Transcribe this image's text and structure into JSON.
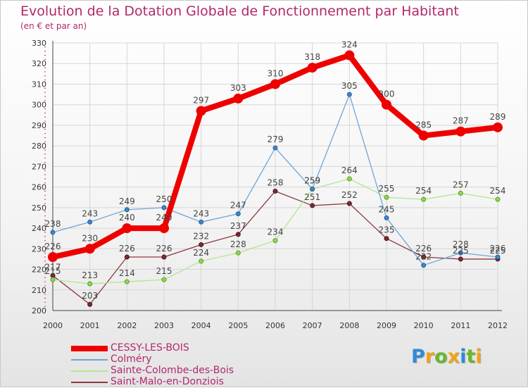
{
  "chart_data": {
    "type": "line",
    "title": "Evolution de la Dotation Globale de Fonctionnement par Habitant",
    "subtitle": "(en € et par an)",
    "xlabel": "",
    "ylabel": "",
    "x": [
      2000,
      2001,
      2002,
      2003,
      2004,
      2005,
      2006,
      2007,
      2008,
      2009,
      2010,
      2011,
      2012
    ],
    "ylim": [
      200,
      330
    ],
    "yticks": [
      200,
      210,
      220,
      230,
      240,
      250,
      260,
      270,
      280,
      290,
      300,
      310,
      320,
      330
    ],
    "grid": true,
    "legend_position": "bottom-left",
    "series": [
      {
        "name": "CESSY-LES-BOIS",
        "color": "#ee0000",
        "values": [
          226,
          230,
          240,
          240,
          297,
          303,
          310,
          318,
          324,
          300,
          285,
          287,
          289
        ]
      },
      {
        "name": "Colméry",
        "color": "#5b9bd5",
        "values": [
          238,
          243,
          249,
          250,
          243,
          247,
          279,
          259,
          305,
          245,
          222,
          228,
          226
        ]
      },
      {
        "name": "Sainte-Colombe-des-Bois",
        "color": "#a6e07a",
        "values": [
          215,
          213,
          214,
          215,
          224,
          228,
          234,
          259,
          264,
          255,
          254,
          257,
          254
        ]
      },
      {
        "name": "Saint-Malo-en-Donziois",
        "color": "#7b2b32",
        "values": [
          217,
          203,
          226,
          226,
          232,
          237,
          258,
          251,
          252,
          235,
          226,
          225,
          225
        ]
      }
    ]
  },
  "logo": {
    "text": "Proxiti",
    "letters": [
      {
        "ch": "P",
        "color": "#2f8bd8"
      },
      {
        "ch": "r",
        "color": "#f0a21b"
      },
      {
        "ch": "o",
        "color": "#66b92e"
      },
      {
        "ch": "x",
        "color": "#f0a21b"
      },
      {
        "ch": "i",
        "color": "#2f8bd8"
      },
      {
        "ch": "t",
        "color": "#66b92e"
      },
      {
        "ch": "i",
        "color": "#f0a21b"
      }
    ]
  }
}
